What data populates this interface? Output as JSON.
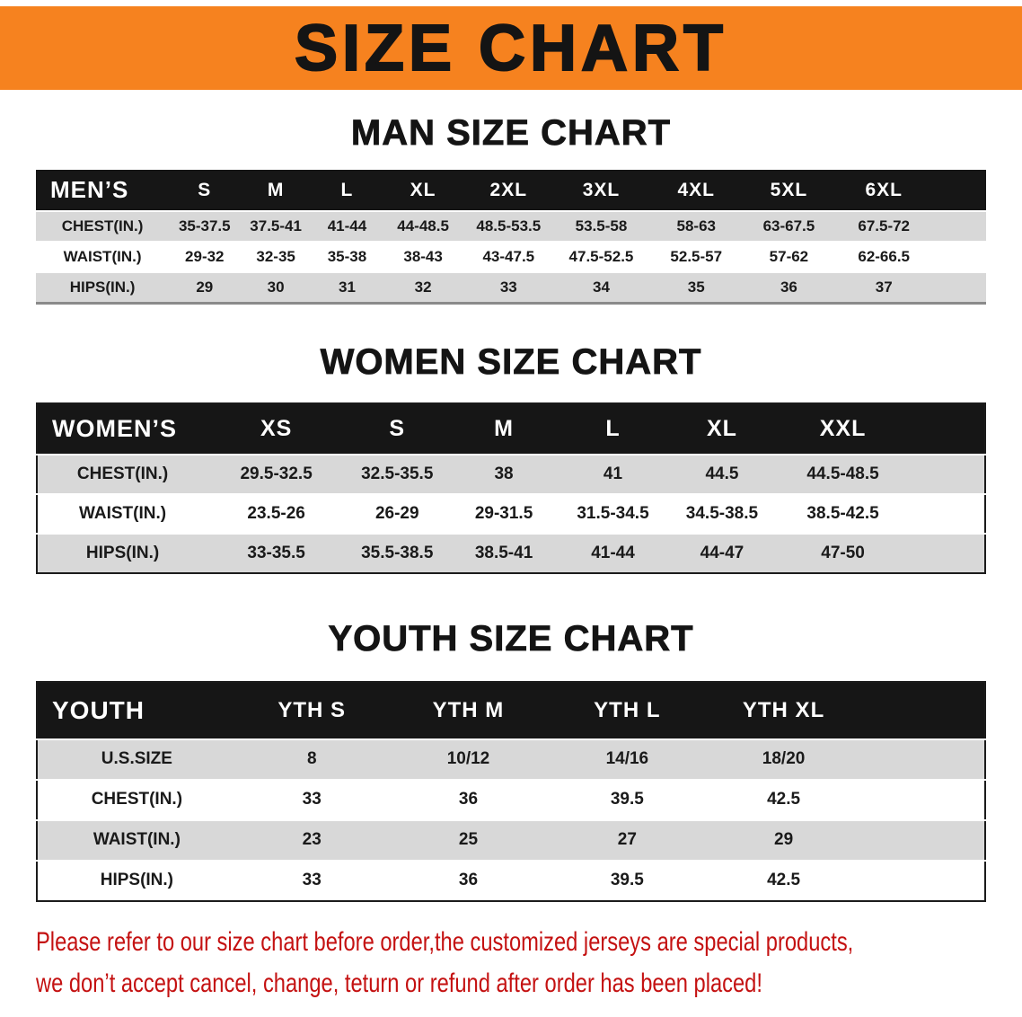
{
  "banner": {
    "title": "SIZE CHART"
  },
  "sections": [
    {
      "heading": "MAN SIZE CHART",
      "table": {
        "header_label": "MEN’S",
        "columns": [
          "S",
          "M",
          "L",
          "XL",
          "2XL",
          "3XL",
          "4XL",
          "5XL",
          "6XL"
        ],
        "rows": [
          {
            "label": "CHEST(IN.)",
            "values": [
              "35-37.5",
              "37.5-41",
              "41-44",
              "44-48.5",
              "48.5-53.5",
              "53.5-58",
              "58-63",
              "63-67.5",
              "67.5-72"
            ]
          },
          {
            "label": "WAIST(IN.)",
            "values": [
              "29-32",
              "32-35",
              "35-38",
              "38-43",
              "43-47.5",
              "47.5-52.5",
              "52.5-57",
              "57-62",
              "62-66.5"
            ]
          },
          {
            "label": "HIPS(IN.)",
            "values": [
              "29",
              "30",
              "31",
              "32",
              "33",
              "34",
              "35",
              "36",
              "37"
            ]
          }
        ]
      }
    },
    {
      "heading": "WOMEN SIZE CHART",
      "table": {
        "header_label": "WOMEN’S",
        "columns": [
          "XS",
          "S",
          "M",
          "L",
          "XL",
          "XXL"
        ],
        "rows": [
          {
            "label": "CHEST(IN.)",
            "values": [
              "29.5-32.5",
              "32.5-35.5",
              "38",
              "41",
              "44.5",
              "44.5-48.5"
            ]
          },
          {
            "label": "WAIST(IN.)",
            "values": [
              "23.5-26",
              "26-29",
              "29-31.5",
              "31.5-34.5",
              "34.5-38.5",
              "38.5-42.5"
            ]
          },
          {
            "label": "HIPS(IN.)",
            "values": [
              "33-35.5",
              "35.5-38.5",
              "38.5-41",
              "41-44",
              "44-47",
              "47-50"
            ]
          }
        ]
      }
    },
    {
      "heading": "YOUTH SIZE CHART",
      "table": {
        "header_label": "YOUTH",
        "columns": [
          "YTH S",
          "YTH M",
          "YTH L",
          "YTH XL"
        ],
        "rows": [
          {
            "label": "U.S.SIZE",
            "values": [
              "8",
              "10/12",
              "14/16",
              "18/20"
            ]
          },
          {
            "label": "CHEST(IN.)",
            "values": [
              "33",
              "36",
              "39.5",
              "42.5"
            ]
          },
          {
            "label": "WAIST(IN.)",
            "values": [
              "23",
              "25",
              "27",
              "29"
            ]
          },
          {
            "label": "HIPS(IN.)",
            "values": [
              "33",
              "36",
              "39.5",
              "42.5"
            ]
          }
        ]
      }
    }
  ],
  "footer": {
    "line1": "Please refer to our size chart before order,the customized jerseys are special products,",
    "line2": "we don’t accept cancel, change, teturn or refund after order has been placed!"
  },
  "colors": {
    "banner_orange": "#f6821f",
    "header_black": "#161616",
    "row_gray": "#d8d8d8",
    "footer_red": "#c41111"
  }
}
